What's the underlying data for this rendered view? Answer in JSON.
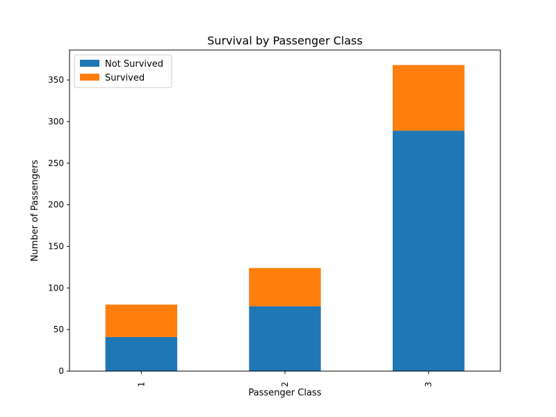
{
  "chart_data": {
    "type": "bar",
    "stacked": true,
    "title": "Survival by Passenger Class",
    "xlabel": "Passenger Class",
    "ylabel": "Number of Passengers",
    "categories": [
      "1",
      "2",
      "3"
    ],
    "series": [
      {
        "name": "Not Survived",
        "values": [
          41,
          78,
          289
        ],
        "color": "#1f77b4"
      },
      {
        "name": "Survived",
        "values": [
          39,
          46,
          79
        ],
        "color": "#ff7f0e"
      }
    ],
    "ylim": [
      0,
      386
    ],
    "yticks": [
      0,
      50,
      100,
      150,
      200,
      250,
      300,
      350
    ],
    "legend_position": "top-left",
    "grid": false
  }
}
